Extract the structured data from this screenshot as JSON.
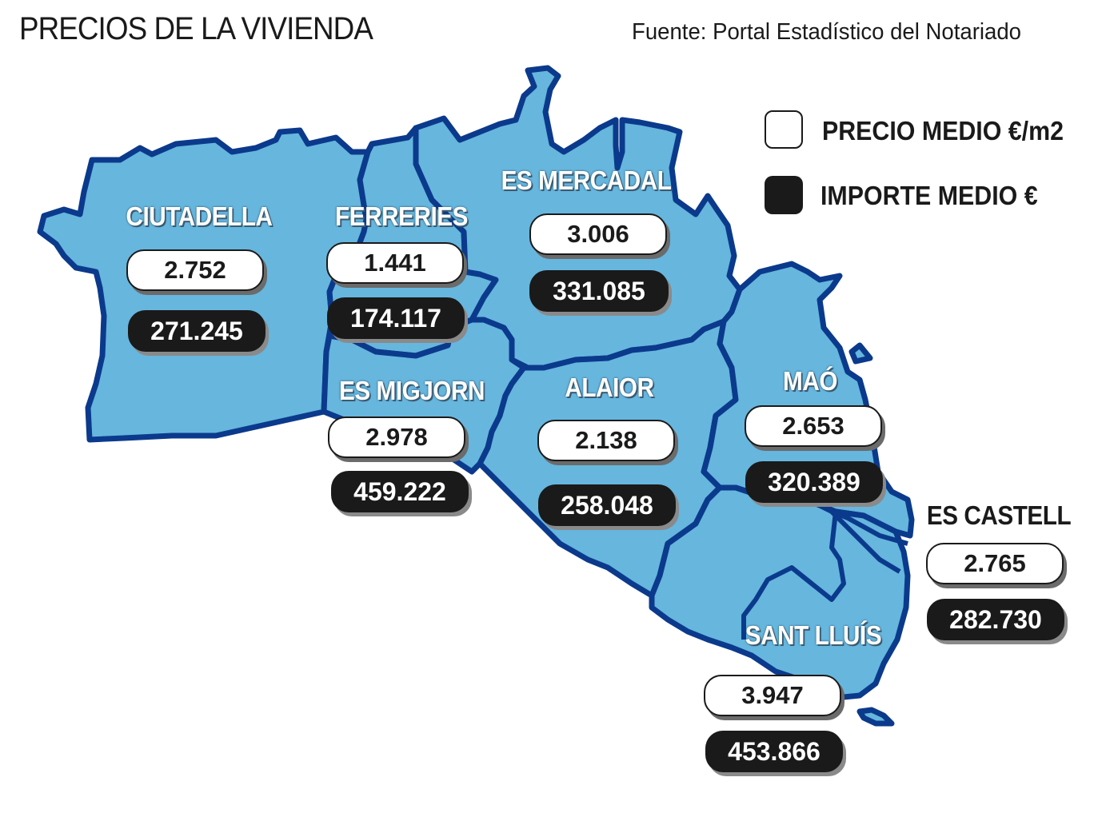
{
  "title": "PRECIOS DE LA VIVIENDA",
  "source": "Fuente: Portal Estadístico del Notariado",
  "legend": {
    "price_label": "PRECIO MEDIO €/m2",
    "amount_label": "IMPORTE MEDIO €"
  },
  "colors": {
    "land": "#66b6de",
    "border": "#0b3a8c",
    "dark_pill": "#1a1a1a"
  },
  "municipalities": [
    {
      "name": "CIUTADELLA",
      "price_m2": "2.752",
      "avg_amount": "271.245"
    },
    {
      "name": "FERRERIES",
      "price_m2": "1.441",
      "avg_amount": "174.117"
    },
    {
      "name": "ES MERCADAL",
      "price_m2": "3.006",
      "avg_amount": "331.085"
    },
    {
      "name": "ES MIGJORN",
      "price_m2": "2.978",
      "avg_amount": "459.222"
    },
    {
      "name": "ALAIOR",
      "price_m2": "2.138",
      "avg_amount": "258.048"
    },
    {
      "name": "MAÓ",
      "price_m2": "2.653",
      "avg_amount": "320.389"
    },
    {
      "name": "ES CASTELL",
      "price_m2": "2.765",
      "avg_amount": "282.730"
    },
    {
      "name": "SANT LLUÍS",
      "price_m2": "3.947",
      "avg_amount": "453.866"
    }
  ]
}
